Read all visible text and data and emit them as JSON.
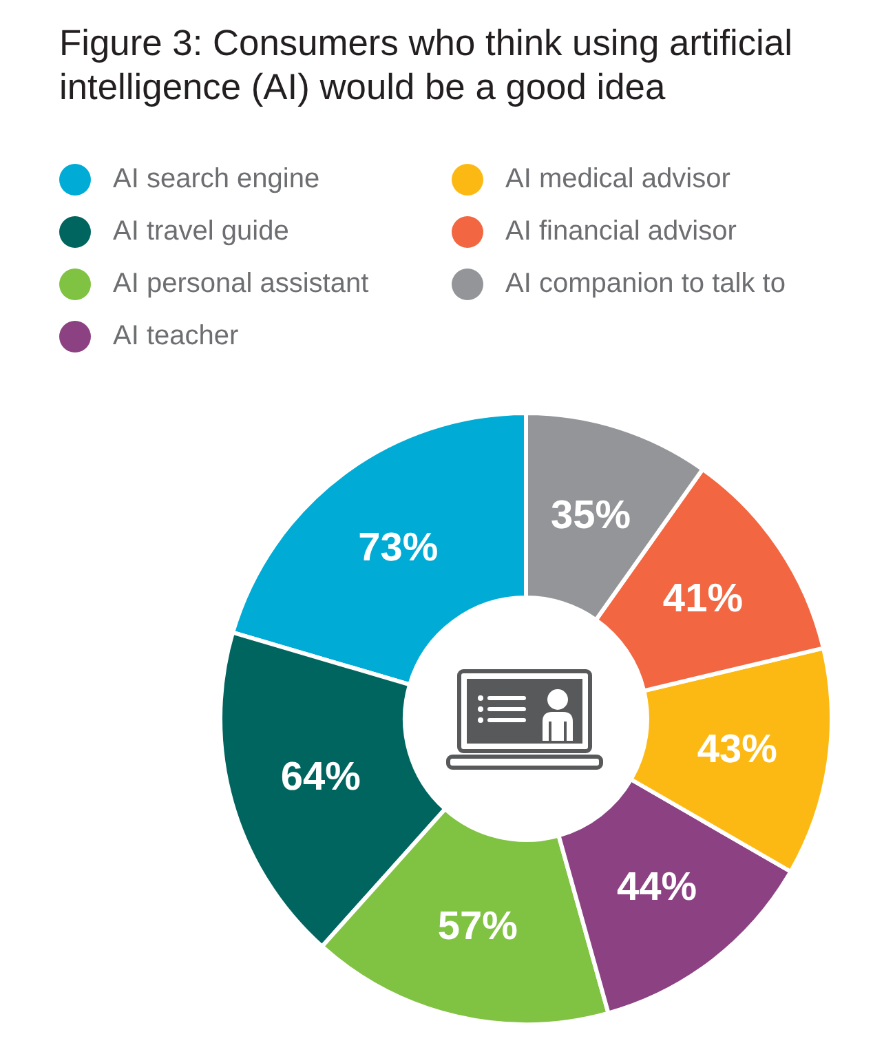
{
  "chart_data": {
    "type": "donut",
    "title": "Figure 3: Consumers who think using artificial intelligence (AI) would be a good idea",
    "categories": [
      "AI search engine",
      "AI travel guide",
      "AI personal assistant",
      "AI teacher",
      "AI medical advisor",
      "AI financial advisor",
      "AI companion to talk to"
    ],
    "values": [
      73,
      64,
      57,
      44,
      43,
      41,
      35
    ],
    "colors": [
      "#00abd6",
      "#00655f",
      "#80c241",
      "#8b4182",
      "#fdb913",
      "#f26641",
      "#939598"
    ],
    "value_labels": [
      "73%",
      "64%",
      "57%",
      "44%",
      "43%",
      "41%",
      "35%"
    ],
    "legend": "top left"
  }
}
